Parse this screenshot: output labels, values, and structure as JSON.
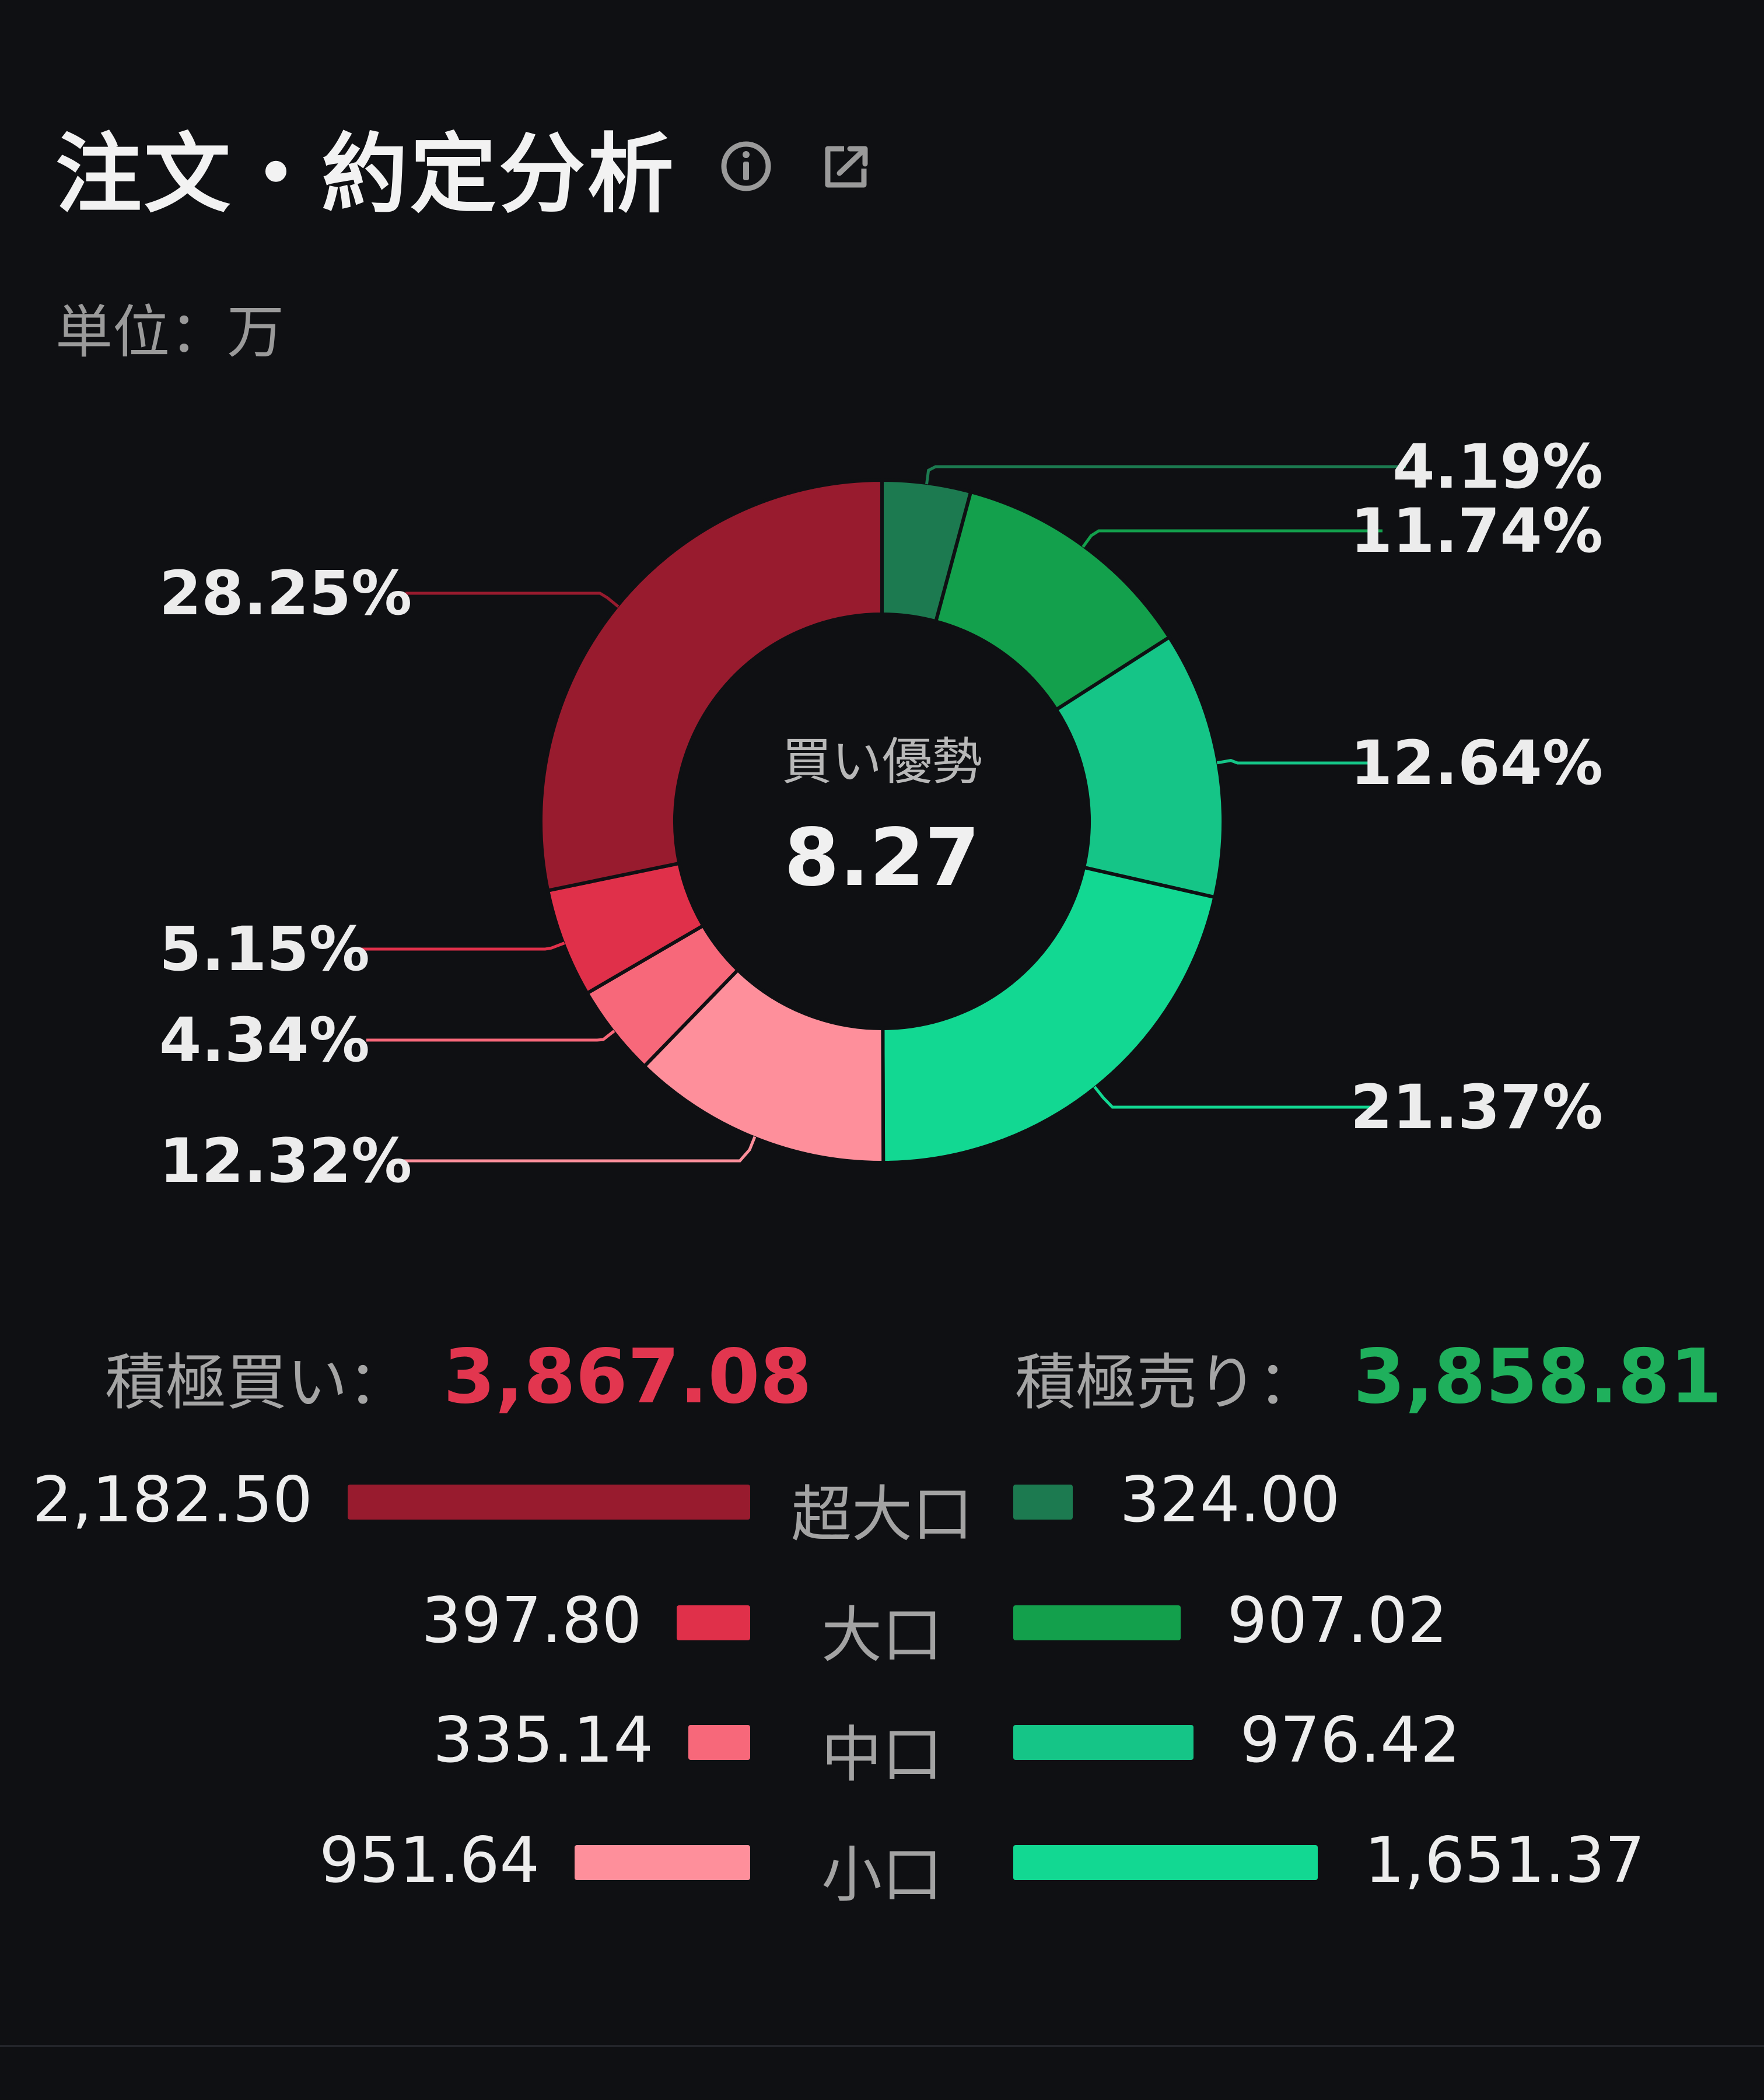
{
  "header": {
    "title": "注文・約定分析"
  },
  "unit_label": "単位：万",
  "chart_data": {
    "type": "pie",
    "center_label": "買い優勢",
    "center_value": "8.27",
    "slices": [
      {
        "label": "4.19%",
        "value": 4.19,
        "color": "#1c7a50",
        "side": "right"
      },
      {
        "label": "11.74%",
        "value": 11.74,
        "color": "#13a04c",
        "side": "right"
      },
      {
        "label": "12.64%",
        "value": 12.64,
        "color": "#15c587",
        "side": "right"
      },
      {
        "label": "21.37%",
        "value": 21.37,
        "color": "#12d892",
        "side": "right"
      },
      {
        "label": "12.32%",
        "value": 12.32,
        "color": "#fe8f9b",
        "side": "left"
      },
      {
        "label": "4.34%",
        "value": 4.34,
        "color": "#f7687a",
        "side": "left"
      },
      {
        "label": "5.15%",
        "value": 5.15,
        "color": "#e0304a",
        "side": "left"
      },
      {
        "label": "28.25%",
        "value": 28.25,
        "color": "#981b2e",
        "side": "left"
      }
    ]
  },
  "summary": {
    "buy_label": "積極買い：",
    "buy_value": "3,867.08",
    "buy_color": "#e2364f",
    "sell_label": "積極売り：",
    "sell_value": "3,858.81",
    "sell_color": "#1fb05c"
  },
  "rows": [
    {
      "category": "超大口",
      "buy": "2,182.50",
      "buy_value": 2182.5,
      "buy_color": "#981b2e",
      "sell": "324.00",
      "sell_value": 324.0,
      "sell_color": "#1c7a50"
    },
    {
      "category": "大口",
      "buy": "397.80",
      "buy_value": 397.8,
      "buy_color": "#e0304a",
      "sell": "907.02",
      "sell_value": 907.02,
      "sell_color": "#13a04c"
    },
    {
      "category": "中口",
      "buy": "335.14",
      "buy_value": 335.14,
      "buy_color": "#f7687a",
      "sell": "976.42",
      "sell_value": 976.42,
      "sell_color": "#15c587"
    },
    {
      "category": "小口",
      "buy": "951.64",
      "buy_value": 951.64,
      "buy_color": "#fe8f9b",
      "sell": "1,651.37",
      "sell_value": 1651.37,
      "sell_color": "#12d892"
    }
  ],
  "icons": [
    "info-icon",
    "share-icon"
  ]
}
